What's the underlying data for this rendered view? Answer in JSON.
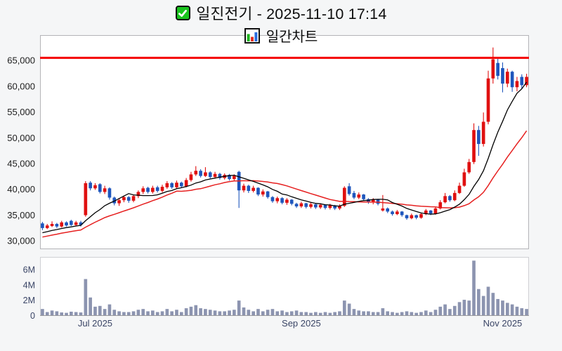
{
  "window": {
    "title_line1": "일진전기 - 2025-11-10 17:14",
    "title_line2": "일간차트"
  },
  "icons": {
    "checkbox": "green-checkbox-with-white-check",
    "subtitle_chart": "mini-bar-chart-green-red-blue"
  },
  "colors": {
    "up_candle": "#e01010",
    "down_candle": "#1e56bd",
    "ma_short": "#000000",
    "ma_long": "#e62020",
    "volume_bar": "#8c94b0",
    "alert_line": "#f50000",
    "panel_border": "#b4b4b8",
    "panel_bg": "#ffffff",
    "page_bg": "#f5f6f7",
    "price_tick_text": "#1c1c1c",
    "volume_tick_text": "#3a4566",
    "checkbox_green": "#18c31d",
    "icon_bar_green": "#1db31d",
    "icon_bar_red": "#e33022",
    "icon_bar_blue": "#2a6de0"
  },
  "chart_data": {
    "type": "candlestick",
    "title": "일진전기 - 2025-11-10 17:14",
    "subtitle": "일간차트",
    "legend_position": "none",
    "grid": false,
    "price_ticks": [
      30000,
      35000,
      40000,
      45000,
      50000,
      55000,
      60000,
      65000
    ],
    "price_range": [
      28400,
      69900
    ],
    "volume_ticks_m": [
      0,
      2,
      4,
      6
    ],
    "volume_tick_labels": [
      "0",
      "2M",
      "4M",
      "6M"
    ],
    "volume_max_m": 7.5,
    "alert_line_price": 65500,
    "x_labels": [
      {
        "label": "Jul 2025",
        "index": 11
      },
      {
        "label": "Sep 2025",
        "index": 54
      },
      {
        "label": "Nov 2025",
        "index": 96
      }
    ],
    "ma_short_window": 10,
    "ma_long_window": 20,
    "ma_warmup_closes": [
      29000,
      29200,
      29500,
      29300,
      29700,
      30000,
      29800,
      30200,
      30500,
      30300,
      30700,
      31000,
      30800,
      31200,
      31500,
      31300,
      31700,
      32000,
      31800,
      32200
    ],
    "candles_ohlcv": [
      [
        33400,
        33700,
        32100,
        32500,
        0.9
      ],
      [
        32500,
        33300,
        32300,
        33000,
        0.5
      ],
      [
        32900,
        33800,
        32700,
        33300,
        0.7
      ],
      [
        33300,
        33500,
        32500,
        32800,
        0.6
      ],
      [
        32800,
        33900,
        32600,
        33600,
        0.45
      ],
      [
        33600,
        33800,
        32800,
        33000,
        0.4
      ],
      [
        33900,
        34100,
        32900,
        33100,
        0.55
      ],
      [
        33100,
        33900,
        32900,
        33600,
        0.5
      ],
      [
        33600,
        33900,
        32800,
        33100,
        0.45
      ],
      [
        35000,
        41600,
        34700,
        41200,
        4.8
      ],
      [
        41300,
        41600,
        39800,
        40200,
        2.4
      ],
      [
        40200,
        41200,
        39900,
        40800,
        1.2
      ],
      [
        41000,
        41200,
        39200,
        39500,
        1.3
      ],
      [
        39500,
        40700,
        39100,
        40200,
        0.9
      ],
      [
        40200,
        40400,
        38000,
        38400,
        1.5
      ],
      [
        38400,
        38600,
        36900,
        37300,
        0.8
      ],
      [
        37300,
        38300,
        36800,
        37900,
        0.6
      ],
      [
        37900,
        38800,
        37500,
        38500,
        0.5
      ],
      [
        38500,
        38700,
        37400,
        37800,
        0.5
      ],
      [
        37800,
        39000,
        37500,
        38700,
        0.6
      ],
      [
        38700,
        39800,
        38300,
        39500,
        0.8
      ],
      [
        39500,
        40600,
        39100,
        40200,
        0.9
      ],
      [
        40300,
        40500,
        39200,
        39500,
        0.6
      ],
      [
        39500,
        40700,
        39200,
        40300,
        0.7
      ],
      [
        40400,
        40700,
        39400,
        39700,
        0.5
      ],
      [
        39700,
        40900,
        39400,
        40500,
        0.6
      ],
      [
        40400,
        41600,
        40100,
        41200,
        0.9
      ],
      [
        41200,
        41400,
        40100,
        40400,
        0.6
      ],
      [
        40400,
        41700,
        40200,
        41300,
        0.8
      ],
      [
        41300,
        41500,
        40300,
        40600,
        0.5
      ],
      [
        40600,
        42200,
        40400,
        41800,
        1.0
      ],
      [
        41800,
        43400,
        41500,
        42900,
        1.2
      ],
      [
        42900,
        44500,
        42600,
        43600,
        1.4
      ],
      [
        43600,
        43900,
        42300,
        42600,
        1.0
      ],
      [
        42600,
        44300,
        42400,
        43300,
        0.9
      ],
      [
        43300,
        43500,
        42100,
        42400,
        0.8
      ],
      [
        42400,
        43400,
        42100,
        43000,
        0.7
      ],
      [
        43000,
        43200,
        41900,
        42200,
        0.6
      ],
      [
        42200,
        43100,
        41900,
        42800,
        0.6
      ],
      [
        42800,
        43000,
        41700,
        42000,
        0.7
      ],
      [
        42000,
        42900,
        41700,
        42600,
        0.8
      ],
      [
        43400,
        43600,
        36400,
        39800,
        2.0
      ],
      [
        39800,
        41100,
        39400,
        40700,
        1.1
      ],
      [
        40700,
        40900,
        39300,
        39700,
        0.8
      ],
      [
        39700,
        40700,
        39400,
        40300,
        0.6
      ],
      [
        40300,
        40400,
        38700,
        39000,
        0.9
      ],
      [
        39000,
        40000,
        38600,
        39600,
        0.6
      ],
      [
        39600,
        39700,
        38200,
        38500,
        0.8
      ],
      [
        38500,
        38700,
        37400,
        37700,
        0.9
      ],
      [
        37700,
        38600,
        37300,
        38300,
        0.6
      ],
      [
        38300,
        38500,
        37100,
        37400,
        0.7
      ],
      [
        37400,
        38300,
        37000,
        38000,
        0.5
      ],
      [
        38000,
        38100,
        36900,
        37200,
        0.6
      ],
      [
        37200,
        37400,
        36400,
        36700,
        0.7
      ],
      [
        36700,
        37600,
        36400,
        37300,
        0.5
      ],
      [
        37300,
        37400,
        36300,
        36600,
        0.5
      ],
      [
        36600,
        37400,
        36300,
        37100,
        0.4
      ],
      [
        37100,
        37200,
        36200,
        36500,
        0.5
      ],
      [
        36500,
        37300,
        36200,
        37000,
        0.4
      ],
      [
        37000,
        37100,
        36100,
        36400,
        0.5
      ],
      [
        36400,
        37200,
        36100,
        36900,
        0.4
      ],
      [
        36900,
        37000,
        36000,
        36300,
        0.5
      ],
      [
        36300,
        37100,
        36000,
        36800,
        0.6
      ],
      [
        36800,
        40600,
        36600,
        40300,
        2.0
      ],
      [
        40600,
        41200,
        38800,
        39100,
        1.6
      ],
      [
        39300,
        39700,
        38100,
        38400,
        0.9
      ],
      [
        38400,
        39400,
        38100,
        39000,
        0.7
      ],
      [
        39000,
        39100,
        37800,
        38100,
        0.6
      ],
      [
        38100,
        38300,
        37200,
        37500,
        0.6
      ],
      [
        37500,
        38300,
        37100,
        38000,
        0.5
      ],
      [
        38000,
        38100,
        36900,
        37200,
        0.5
      ],
      [
        35900,
        38900,
        35700,
        36300,
        1.0
      ],
      [
        36300,
        36500,
        35400,
        35700,
        0.6
      ],
      [
        35700,
        35900,
        34900,
        35200,
        0.5
      ],
      [
        35200,
        36000,
        35000,
        35700,
        0.4
      ],
      [
        35700,
        35800,
        34700,
        35000,
        0.5
      ],
      [
        35000,
        35100,
        34100,
        34400,
        0.6
      ],
      [
        34400,
        35300,
        34200,
        35000,
        0.5
      ],
      [
        35000,
        35100,
        34200,
        34500,
        0.4
      ],
      [
        34500,
        35500,
        34300,
        35200,
        0.5
      ],
      [
        35200,
        36200,
        35000,
        35900,
        0.7
      ],
      [
        35900,
        36000,
        35000,
        35300,
        0.5
      ],
      [
        35300,
        36600,
        35100,
        36300,
        0.8
      ],
      [
        36300,
        37900,
        36100,
        37500,
        1.2
      ],
      [
        37500,
        39300,
        37300,
        38700,
        1.5
      ],
      [
        38700,
        38900,
        37600,
        37900,
        0.9
      ],
      [
        37900,
        39800,
        37700,
        39300,
        1.3
      ],
      [
        39300,
        41300,
        39100,
        40700,
        1.8
      ],
      [
        40700,
        44000,
        40500,
        43300,
        2.1
      ],
      [
        43300,
        45900,
        43000,
        45300,
        2.0
      ],
      [
        45300,
        52800,
        44900,
        51500,
        7.2
      ],
      [
        51500,
        52300,
        46500,
        48800,
        3.5
      ],
      [
        48800,
        54900,
        48300,
        53100,
        2.6
      ],
      [
        53100,
        63000,
        52600,
        61500,
        3.8
      ],
      [
        61500,
        67500,
        60500,
        65200,
        3.0
      ],
      [
        64500,
        65300,
        61300,
        62000,
        2.2
      ],
      [
        63500,
        64600,
        58800,
        60500,
        2.0
      ],
      [
        60500,
        63400,
        59800,
        62800,
        1.7
      ],
      [
        62800,
        63000,
        58900,
        59800,
        1.5
      ],
      [
        59800,
        61800,
        59000,
        61000,
        1.2
      ],
      [
        61800,
        62300,
        59500,
        60200,
        1.0
      ],
      [
        60200,
        62400,
        59800,
        61800,
        0.9
      ]
    ]
  }
}
